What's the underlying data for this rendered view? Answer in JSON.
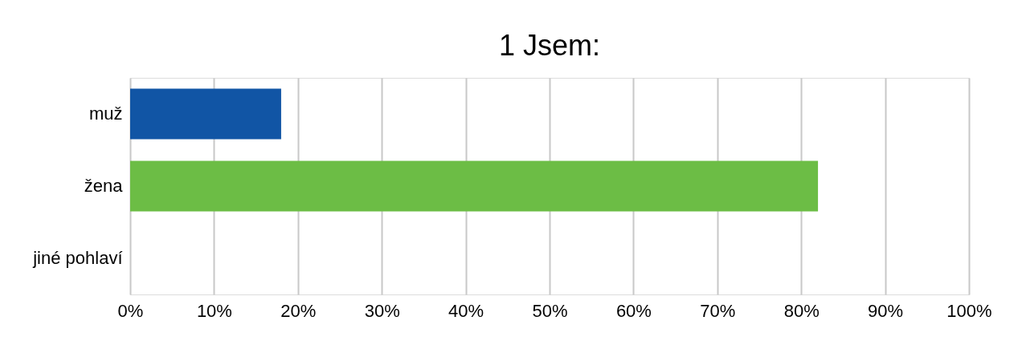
{
  "chart_data": {
    "type": "bar",
    "orientation": "horizontal",
    "title": "1 Jsem:",
    "categories": [
      "muž",
      "žena",
      "jiné pohlaví"
    ],
    "values": [
      18,
      82,
      0
    ],
    "colors": [
      "#1155a5",
      "#6cbd45",
      "#a5a5a5"
    ],
    "xlim": [
      0,
      100
    ],
    "xticks": [
      {
        "value": 0,
        "label": "0%"
      },
      {
        "value": 10,
        "label": "10%"
      },
      {
        "value": 20,
        "label": "20%"
      },
      {
        "value": 30,
        "label": "30%"
      },
      {
        "value": 40,
        "label": "40%"
      },
      {
        "value": 50,
        "label": "50%"
      },
      {
        "value": 60,
        "label": "60%"
      },
      {
        "value": 70,
        "label": "70%"
      },
      {
        "value": 80,
        "label": "80%"
      },
      {
        "value": 90,
        "label": "90%"
      },
      {
        "value": 100,
        "label": "100%"
      }
    ],
    "grid": "x"
  }
}
